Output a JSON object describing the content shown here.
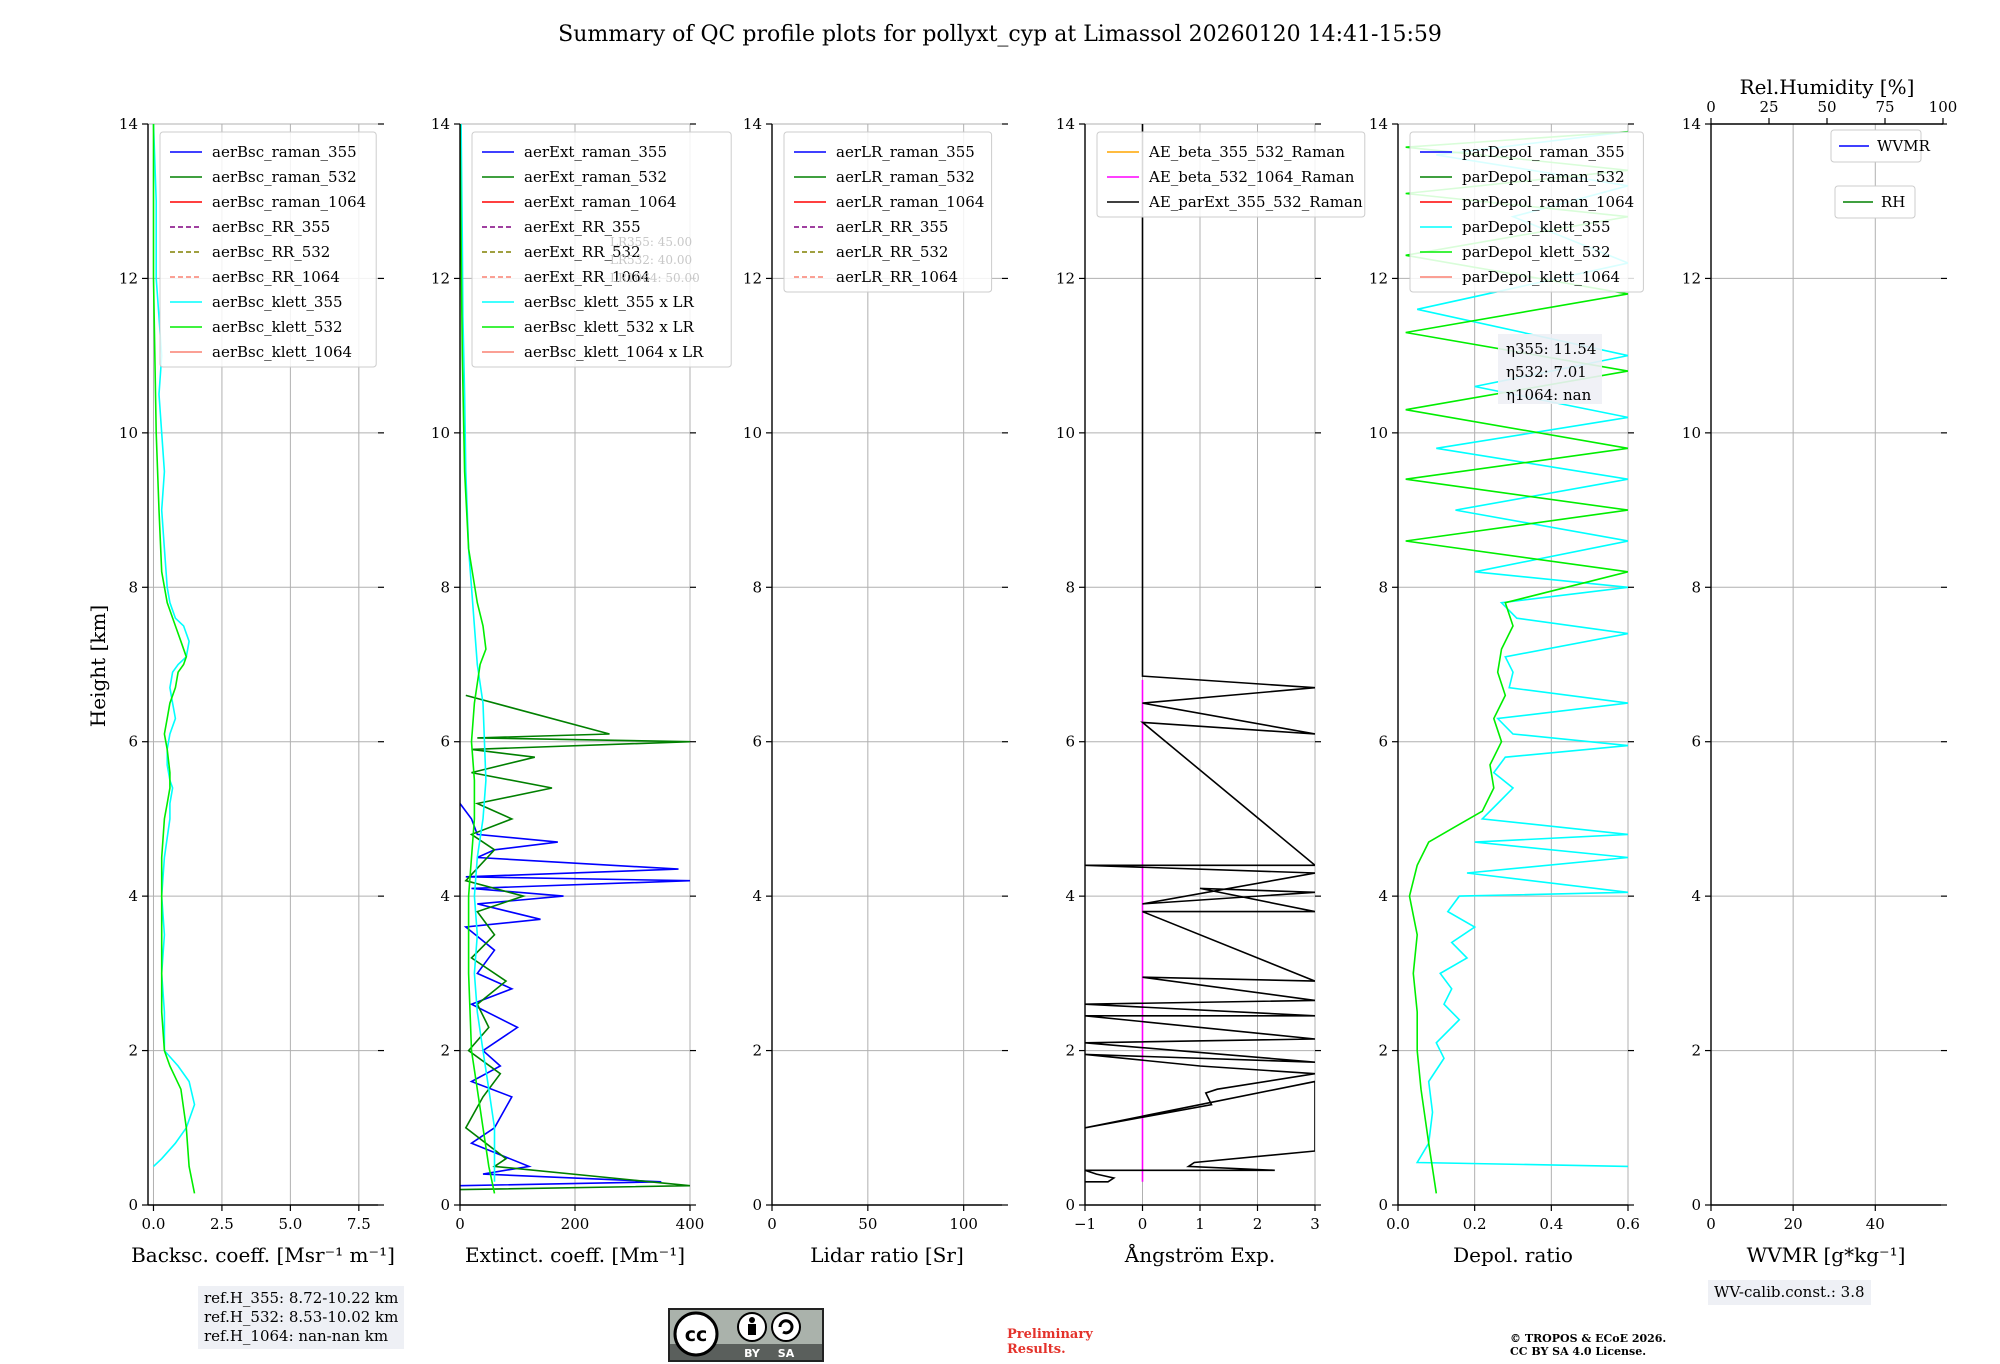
{
  "title": "Summary of QC profile plots for pollyxt_cyp at Limassol 20260120 14:41-15:59",
  "y_axis_label": "Height [km]",
  "chart_data": [
    {
      "type": "line",
      "id": "backscatter",
      "xlabel": "Backsc. coeff. [Msr⁻¹ m⁻¹]",
      "ylabel": "Height [km]",
      "xlim": [
        -0.2,
        8.2
      ],
      "ylim": [
        0,
        14
      ],
      "xticks": [
        0,
        2.5,
        5,
        7.5
      ],
      "xtick_labels": [
        "0.0",
        "2.5",
        "5.0",
        "7.5"
      ],
      "yticks": [
        0,
        2,
        4,
        6,
        8,
        10,
        12,
        14
      ],
      "legend": [
        {
          "label": "aerBsc_raman_355",
          "color": "#0000ff",
          "dash": false
        },
        {
          "label": "aerBsc_raman_532",
          "color": "#008000",
          "dash": false
        },
        {
          "label": "aerBsc_raman_1064",
          "color": "#ff0000",
          "dash": false
        },
        {
          "label": "aerBsc_RR_355",
          "color": "#800080",
          "dash": true
        },
        {
          "label": "aerBsc_RR_532",
          "color": "#808000",
          "dash": true
        },
        {
          "label": "aerBsc_RR_1064",
          "color": "#fa8072",
          "dash": true
        },
        {
          "label": "aerBsc_klett_355",
          "color": "#00ffff",
          "dash": false
        },
        {
          "label": "aerBsc_klett_532",
          "color": "#00ee00",
          "dash": false
        },
        {
          "label": "aerBsc_klett_1064",
          "color": "#fa8072",
          "dash": false
        }
      ],
      "series": [
        {
          "name": "aerBsc_klett_355",
          "color": "#00ffff",
          "x": [
            0,
            0.3,
            0.8,
            1.2,
            1.5,
            1.3,
            0.9,
            0.4,
            0.4,
            0.3,
            0.4,
            0.3,
            0.4,
            0.6,
            0.6,
            0.7,
            0.6,
            0.5,
            0.5,
            0.6,
            0.8,
            0.7,
            0.6,
            0.7,
            0.9,
            1.2,
            1.3,
            1.1,
            0.8,
            0.6,
            0.5,
            0.4,
            0.3,
            0.4,
            0.3,
            0.2,
            0.3,
            0.2,
            0.1,
            0.1,
            0.0
          ],
          "y": [
            0.5,
            0.6,
            0.8,
            1.0,
            1.3,
            1.6,
            1.8,
            2.0,
            2.5,
            3.0,
            3.5,
            4.0,
            4.5,
            5.0,
            5.2,
            5.4,
            5.5,
            5.7,
            5.9,
            6.1,
            6.3,
            6.5,
            6.7,
            6.9,
            7.0,
            7.1,
            7.3,
            7.5,
            7.6,
            7.8,
            8.0,
            8.5,
            9.0,
            9.5,
            10.0,
            10.5,
            11.0,
            11.5,
            12.0,
            13.0,
            14.0
          ]
        },
        {
          "name": "aerBsc_klett_532",
          "color": "#00ee00",
          "x": [
            1.5,
            1.3,
            1.2,
            1.0,
            0.6,
            0.4,
            0.3,
            0.3,
            0.3,
            0.3,
            0.3,
            0.4,
            0.5,
            0.6,
            0.6,
            0.5,
            0.4,
            0.5,
            0.6,
            0.8,
            0.9,
            1.1,
            1.2,
            1.0,
            0.8,
            0.5,
            0.3,
            0.2,
            0.1,
            0.0,
            0.0
          ],
          "y": [
            0.15,
            0.5,
            1.0,
            1.5,
            1.8,
            2.0,
            2.5,
            3.0,
            3.5,
            4.0,
            4.5,
            5.0,
            5.2,
            5.4,
            5.6,
            5.9,
            6.1,
            6.3,
            6.5,
            6.7,
            6.9,
            7.0,
            7.1,
            7.3,
            7.5,
            7.8,
            8.2,
            9.0,
            10.0,
            12.0,
            14.0
          ]
        }
      ],
      "annotation": [
        "ref.H_355: 8.72-10.22 km",
        "ref.H_532: 8.53-10.02 km",
        "ref.H_1064: nan-nan km"
      ]
    },
    {
      "type": "line",
      "id": "extinction",
      "xlabel": "Extinct. coeff. [Mm⁻¹]",
      "xlim": [
        0,
        400
      ],
      "ylim": [
        0,
        14
      ],
      "xticks": [
        0,
        200,
        400
      ],
      "xtick_labels": [
        "0",
        "200",
        "400"
      ],
      "yticks": [
        0,
        2,
        4,
        6,
        8,
        10,
        12,
        14
      ],
      "legend": [
        {
          "label": "aerExt_raman_355",
          "color": "#0000ff",
          "dash": false
        },
        {
          "label": "aerExt_raman_532",
          "color": "#008000",
          "dash": false
        },
        {
          "label": "aerExt_raman_1064",
          "color": "#ff0000",
          "dash": false
        },
        {
          "label": "aerExt_RR_355",
          "color": "#800080",
          "dash": true
        },
        {
          "label": "aerExt_RR_532",
          "color": "#808000",
          "dash": true
        },
        {
          "label": "aerExt_RR_1064",
          "color": "#fa8072",
          "dash": true
        },
        {
          "label": "aerBsc_klett_355 x LR",
          "color": "#00ffff",
          "dash": false
        },
        {
          "label": "aerBsc_klett_532 x LR",
          "color": "#00ee00",
          "dash": false
        },
        {
          "label": "aerBsc_klett_1064 x LR",
          "color": "#fa8072",
          "dash": false
        }
      ],
      "lr_labels": [
        "LR355: 45.00",
        "LR532: 40.00",
        "LR1064: 50.00"
      ],
      "series": [
        {
          "name": "aerExt_raman_355",
          "color": "#0000ff",
          "x": [
            0,
            350,
            40,
            120,
            20,
            60,
            90,
            20,
            70,
            40,
            100,
            20,
            90,
            30,
            60,
            10,
            140,
            30,
            180,
            20,
            400,
            10,
            380,
            30,
            60,
            170,
            30,
            20,
            0
          ],
          "y": [
            0.25,
            0.3,
            0.4,
            0.5,
            0.8,
            1.0,
            1.4,
            1.6,
            1.8,
            2.0,
            2.3,
            2.6,
            2.8,
            3.0,
            3.3,
            3.6,
            3.7,
            3.9,
            4.0,
            4.1,
            4.2,
            4.25,
            4.35,
            4.5,
            4.6,
            4.7,
            4.8,
            5.0,
            5.2
          ]
        },
        {
          "name": "aerExt_raman_532",
          "color": "#008000",
          "x": [
            0,
            400,
            60,
            80,
            10,
            40,
            70,
            15,
            50,
            30,
            80,
            20,
            60,
            30,
            110,
            10,
            60,
            20,
            90,
            30,
            160,
            20,
            130,
            20,
            400,
            30,
            260,
            10
          ],
          "y": [
            0.2,
            0.25,
            0.5,
            0.6,
            1.0,
            1.4,
            1.7,
            2.0,
            2.3,
            2.6,
            2.9,
            3.2,
            3.5,
            3.8,
            4.0,
            4.2,
            4.6,
            4.8,
            5.0,
            5.2,
            5.4,
            5.6,
            5.8,
            5.9,
            6.0,
            6.05,
            6.1,
            6.6
          ]
        },
        {
          "name": "aerBsc_klett_355 x LR",
          "color": "#00ffff",
          "x": [
            60,
            60,
            50,
            40,
            30,
            25,
            30,
            25,
            30,
            40,
            45,
            40,
            30,
            25,
            20,
            15,
            10,
            8,
            5,
            4,
            2
          ],
          "y": [
            0.3,
            1.0,
            1.5,
            2.0,
            2.5,
            3.0,
            3.5,
            4.0,
            4.5,
            5.0,
            5.5,
            6.5,
            7.0,
            7.5,
            8.0,
            8.5,
            9.5,
            10.5,
            11.5,
            12.5,
            14.0
          ]
        },
        {
          "name": "aerBsc_klett_532 x LR",
          "color": "#00ee00",
          "x": [
            60,
            50,
            40,
            30,
            20,
            15,
            15,
            20,
            25,
            25,
            20,
            25,
            35,
            45,
            40,
            30,
            15,
            8,
            4,
            2,
            0
          ],
          "y": [
            0.15,
            0.5,
            1.0,
            1.5,
            2.0,
            3.0,
            4.0,
            4.5,
            5.0,
            5.5,
            6.0,
            6.5,
            7.0,
            7.2,
            7.5,
            7.8,
            8.5,
            9.5,
            11.0,
            12.5,
            14.0
          ]
        }
      ]
    },
    {
      "type": "line",
      "id": "lidar_ratio",
      "xlabel": "Lidar ratio [Sr]",
      "xlim": [
        0,
        120
      ],
      "ylim": [
        0,
        14
      ],
      "xticks": [
        0,
        50,
        100
      ],
      "xtick_labels": [
        "0",
        "50",
        "100"
      ],
      "yticks": [
        0,
        2,
        4,
        6,
        8,
        10,
        12,
        14
      ],
      "legend": [
        {
          "label": "aerLR_raman_355",
          "color": "#0000ff",
          "dash": false
        },
        {
          "label": "aerLR_raman_532",
          "color": "#008000",
          "dash": false
        },
        {
          "label": "aerLR_raman_1064",
          "color": "#ff0000",
          "dash": false
        },
        {
          "label": "aerLR_RR_355",
          "color": "#800080",
          "dash": true
        },
        {
          "label": "aerLR_RR_532",
          "color": "#808000",
          "dash": true
        },
        {
          "label": "aerLR_RR_1064",
          "color": "#fa8072",
          "dash": true
        }
      ],
      "series": []
    },
    {
      "type": "line",
      "id": "angstrom",
      "xlabel": "Ångström Exp.",
      "xlim": [
        -1,
        3
      ],
      "ylim": [
        0,
        14
      ],
      "xticks": [
        -1,
        0,
        1,
        2,
        3
      ],
      "xtick_labels": [
        "−1",
        "0",
        "1",
        "2",
        "3"
      ],
      "yticks": [
        0,
        2,
        4,
        6,
        8,
        10,
        12,
        14
      ],
      "legend": [
        {
          "label": "AE_beta_355_532_Raman",
          "color": "#ffa500",
          "dash": false
        },
        {
          "label": "AE_beta_532_1064_Raman",
          "color": "#ff00ff",
          "dash": false
        },
        {
          "label": "AE_parExt_355_532_Raman",
          "color": "#000000",
          "dash": false
        }
      ],
      "series": [
        {
          "name": "AE_beta_532_1064_Raman",
          "color": "#ff00ff",
          "x": [
            0,
            0
          ],
          "y": [
            0.3,
            6.8
          ]
        },
        {
          "name": "AE_parExt_355_532_Raman",
          "color": "#000000",
          "x": [
            -1,
            -0.6,
            -0.5,
            -0.8,
            -1,
            2.3,
            0.8,
            0.9,
            3.0,
            3.0,
            -1,
            1.2,
            1.1,
            1.3,
            3.0,
            1.0,
            -1,
            3.0,
            -1,
            3.0,
            -1,
            3.0,
            -1,
            3.0,
            0,
            3.0,
            0,
            3.0,
            1.0,
            3.0,
            0,
            3.0,
            -1,
            3.0,
            0,
            3.0,
            0,
            3.0,
            0,
            0
          ],
          "y": [
            0.3,
            0.3,
            0.35,
            0.4,
            0.45,
            0.45,
            0.5,
            0.55,
            0.7,
            1.6,
            1.0,
            1.3,
            1.45,
            1.5,
            1.7,
            1.8,
            1.95,
            1.85,
            2.1,
            2.15,
            2.45,
            2.45,
            2.6,
            2.65,
            2.95,
            2.9,
            3.8,
            3.8,
            4.1,
            4.05,
            3.9,
            4.3,
            4.4,
            4.4,
            6.25,
            6.1,
            6.5,
            6.7,
            6.85,
            14.0
          ]
        }
      ]
    },
    {
      "type": "line",
      "id": "depolarization",
      "xlabel": "Depol. ratio",
      "xlim": [
        0,
        0.6
      ],
      "ylim": [
        0,
        14
      ],
      "xticks": [
        0,
        0.2,
        0.4,
        0.6
      ],
      "xtick_labels": [
        "0.0",
        "0.2",
        "0.4",
        "0.6"
      ],
      "yticks": [
        0,
        2,
        4,
        6,
        8,
        10,
        12,
        14
      ],
      "legend": [
        {
          "label": "parDepol_raman_355",
          "color": "#0000ff",
          "dash": false
        },
        {
          "label": "parDepol_raman_532",
          "color": "#008000",
          "dash": false
        },
        {
          "label": "parDepol_raman_1064",
          "color": "#ff0000",
          "dash": false
        },
        {
          "label": "parDepol_klett_355",
          "color": "#00ffff",
          "dash": false
        },
        {
          "label": "parDepol_klett_532",
          "color": "#00ee00",
          "dash": false
        },
        {
          "label": "parDepol_klett_1064",
          "color": "#fa8072",
          "dash": false
        }
      ],
      "eta": [
        "η355: 11.54",
        "η532: 7.01",
        "η1064: nan"
      ],
      "series": [
        {
          "name": "parDepol_klett_355",
          "color": "#00ffff",
          "x": [
            0.6,
            0.05,
            0.08,
            0.09,
            0.08,
            0.12,
            0.1,
            0.16,
            0.12,
            0.14,
            0.11,
            0.18,
            0.14,
            0.2,
            0.13,
            0.16,
            0.6,
            0.18,
            0.6,
            0.2,
            0.6,
            0.22,
            0.26,
            0.3,
            0.25,
            0.28,
            0.6,
            0.3,
            0.26,
            0.6,
            0.29,
            0.3,
            0.28,
            0.6,
            0.31,
            0.27,
            0.6,
            0.2,
            0.6,
            0.15,
            0.6,
            0.1,
            0.6,
            0.2,
            0.6,
            0.05,
            0.6,
            0.3,
            0.6,
            0.1,
            0.6
          ],
          "y": [
            0.5,
            0.55,
            0.8,
            1.2,
            1.6,
            1.9,
            2.1,
            2.4,
            2.6,
            2.8,
            3.0,
            3.2,
            3.4,
            3.6,
            3.8,
            4.0,
            4.05,
            4.3,
            4.5,
            4.7,
            4.8,
            5.0,
            5.2,
            5.4,
            5.6,
            5.8,
            5.95,
            6.1,
            6.3,
            6.5,
            6.7,
            6.9,
            7.1,
            7.4,
            7.6,
            7.8,
            8.0,
            8.2,
            8.6,
            9.0,
            9.4,
            9.8,
            10.2,
            10.6,
            11.0,
            11.6,
            12.2,
            12.8,
            13.2,
            13.6,
            13.9
          ]
        },
        {
          "name": "parDepol_klett_532",
          "color": "#00ee00",
          "x": [
            0.1,
            0.08,
            0.06,
            0.05,
            0.05,
            0.04,
            0.05,
            0.03,
            0.05,
            0.08,
            0.15,
            0.22,
            0.25,
            0.24,
            0.27,
            0.25,
            0.28,
            0.26,
            0.27,
            0.3,
            0.28,
            0.6,
            0.02,
            0.6,
            0.02,
            0.6,
            0.02,
            0.6,
            0.02,
            0.6,
            0.02,
            0.6,
            0.02,
            0.6,
            0.02,
            0.6
          ],
          "y": [
            0.15,
            0.8,
            1.5,
            2.0,
            2.5,
            3.0,
            3.5,
            4.0,
            4.4,
            4.7,
            4.9,
            5.1,
            5.4,
            5.7,
            6.0,
            6.3,
            6.6,
            6.9,
            7.2,
            7.5,
            7.8,
            8.2,
            8.6,
            9.0,
            9.4,
            9.8,
            10.3,
            10.8,
            11.3,
            11.8,
            12.3,
            12.8,
            13.1,
            13.4,
            13.7,
            13.9
          ]
        }
      ]
    },
    {
      "type": "line",
      "id": "wvmr",
      "xlabel": "WVMR [g*kg⁻¹]",
      "xlim": [
        0,
        56
      ],
      "ylim": [
        0,
        14
      ],
      "xticks": [
        0,
        20,
        40
      ],
      "xtick_labels": [
        "0",
        "20",
        "40"
      ],
      "yticks": [
        0,
        2,
        4,
        6,
        8,
        10,
        12,
        14
      ],
      "top_xlabel": "Rel.Humidity [%]",
      "top_xticks": [
        "0",
        "25",
        "50",
        "75",
        "100"
      ],
      "legend_wvmr": {
        "label": "WVMR",
        "color": "#0000ff"
      },
      "legend_rh": {
        "label": "RH",
        "color": "#008000"
      },
      "annotation": "WV-calib.const.: 3.8",
      "series": []
    }
  ],
  "footer": {
    "license_badge": {
      "cc": "cc",
      "by": "BY",
      "sa": "SA"
    },
    "preliminary": "Preliminary Results.",
    "copyright_1": "© TROPOS & ECoE 2026.",
    "copyright_2": "CC BY SA 4.0 License."
  }
}
